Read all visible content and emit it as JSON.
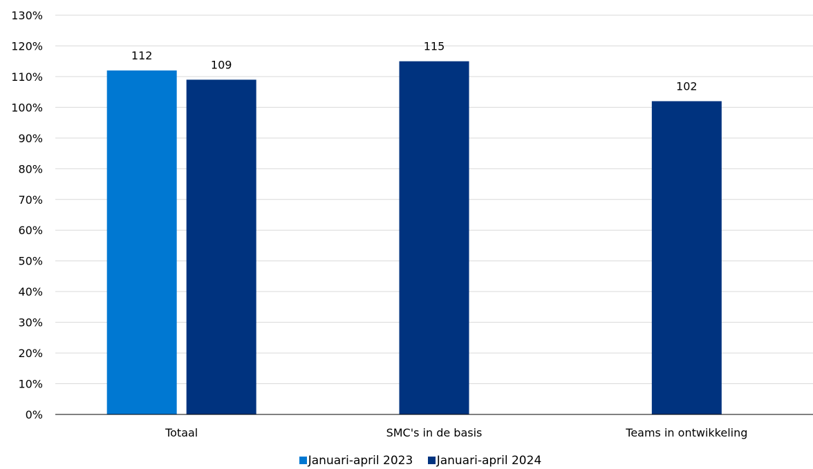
{
  "chart_data": {
    "type": "bar",
    "categories": [
      "Totaal",
      "SMC's in de basis",
      "Teams in ontwikkeling"
    ],
    "series": [
      {
        "name": "Januari-april 2023",
        "color": "#0078d2",
        "values": [
          112,
          null,
          null
        ]
      },
      {
        "name": "Januari-april 2024",
        "color": "#00337f",
        "values": [
          109,
          115,
          102
        ]
      }
    ],
    "data_labels": [
      [
        "112",
        "",
        ""
      ],
      [
        "109",
        "115",
        "102"
      ]
    ],
    "ylim": [
      0,
      130
    ],
    "y_tick_step": 10,
    "y_tick_format": "%",
    "grid": true,
    "legend_position": "bottom",
    "title": "",
    "xlabel": "",
    "ylabel": ""
  }
}
